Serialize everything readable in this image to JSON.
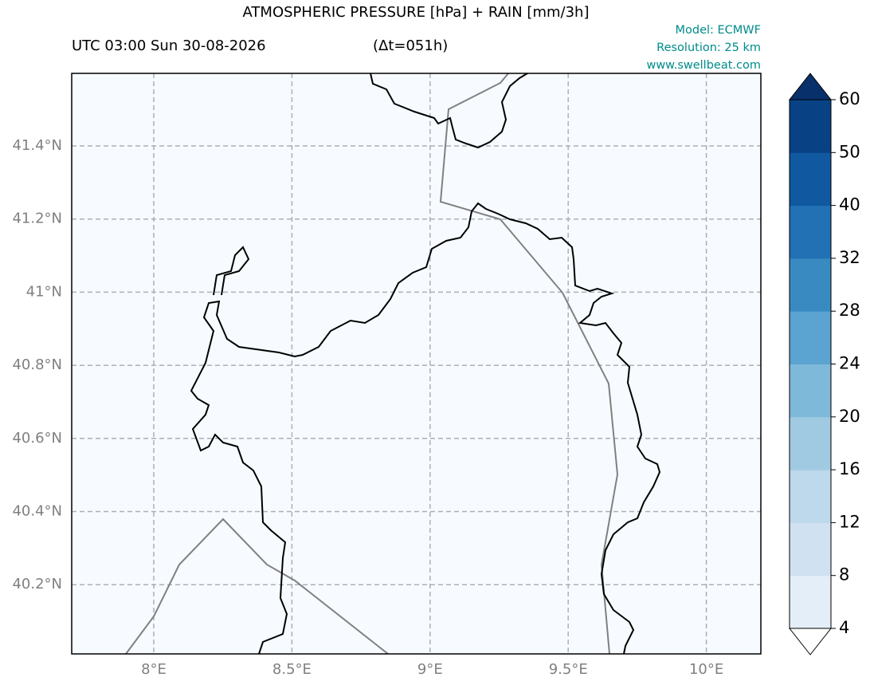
{
  "title": "ATMOSPHERIC PRESSURE [hPa] + RAIN [mm/3h]",
  "time": "UTC 03:00 Sun 30-08-2026",
  "lead": "(Δt=051h)",
  "model": "Model: ECMWF",
  "resolution": "Resolution: 25 km",
  "website": "www.swellbeat.com",
  "lat_labels": [
    "41.4°N",
    "41.2°N",
    "41°N",
    "40.8°N",
    "40.6°N",
    "40.4°N",
    "40.2°N"
  ],
  "lon_labels": [
    "8°E",
    "8.5°E",
    "9°E",
    "9.5°E",
    "10°E"
  ],
  "colorbar": {
    "ticks": [
      4,
      8,
      12,
      16,
      20,
      24,
      28,
      32,
      40,
      50,
      60
    ],
    "colors": [
      "#ffffff",
      "#e3eef9",
      "#d0e1f2",
      "#bed8ec",
      "#a0cae1",
      "#7fb9da",
      "#5ba3d0",
      "#3a8ac2",
      "#2271b5",
      "#1059a1",
      "#084285",
      "#08306b"
    ]
  }
}
